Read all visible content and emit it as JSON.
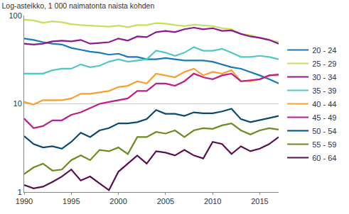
{
  "chart_data": {
    "type": "line",
    "title": "Log-asteikko, 1 000 naimatonta naista kohden",
    "x": [
      1990,
      1991,
      1992,
      1993,
      1994,
      1995,
      1996,
      1997,
      1998,
      1999,
      2000,
      2001,
      2002,
      2003,
      2004,
      2005,
      2006,
      2007,
      2008,
      2009,
      2010,
      2011,
      2012,
      2013,
      2014,
      2015,
      2016,
      2017
    ],
    "series": [
      {
        "name": "20 - 24",
        "color": "#1a7bb8",
        "values": [
          55,
          53,
          50,
          48,
          47,
          43,
          41,
          39,
          38,
          36,
          37,
          34,
          34,
          32,
          32,
          33,
          32,
          31,
          31,
          31,
          30,
          28,
          26,
          25,
          23,
          21,
          19,
          17
        ]
      },
      {
        "name": "25 - 29",
        "color": "#c5e15c",
        "values": [
          90,
          88,
          83,
          86,
          84,
          80,
          78,
          77,
          75,
          75,
          77,
          74,
          78,
          78,
          82,
          81,
          78,
          76,
          79,
          78,
          76,
          72,
          70,
          62,
          60,
          56,
          53,
          50
        ]
      },
      {
        "name": "30 - 34",
        "color": "#8c1a8c",
        "values": [
          48,
          47,
          48,
          51,
          52,
          51,
          53,
          48,
          49,
          50,
          55,
          52,
          58,
          57,
          65,
          67,
          65,
          70,
          73,
          70,
          72,
          67,
          68,
          62,
          58,
          56,
          53,
          48
        ]
      },
      {
        "name": "35 - 39",
        "color": "#4fc9c4",
        "values": [
          22,
          22,
          22,
          24,
          25,
          25,
          28,
          26,
          27,
          30,
          32,
          30,
          31,
          32,
          40,
          38,
          35,
          38,
          44,
          40,
          40,
          42,
          38,
          34,
          34,
          35,
          34,
          32
        ]
      },
      {
        "name": "40 - 44",
        "color": "#f7a030",
        "values": [
          10.5,
          9.8,
          11,
          11,
          11,
          11.5,
          13,
          13,
          13.5,
          14,
          15.5,
          16,
          18,
          17,
          22,
          21,
          20,
          23,
          25,
          21,
          23,
          22,
          24,
          18,
          18,
          19,
          21,
          21
        ]
      },
      {
        "name": "45 - 49",
        "color": "#bf1d8a",
        "values": [
          6.8,
          5.3,
          5.6,
          6.5,
          6.5,
          7.5,
          8,
          9,
          10,
          10.5,
          11,
          11.5,
          14,
          14,
          17,
          17,
          16,
          18,
          22,
          20,
          19,
          21,
          22,
          18,
          18.5,
          19,
          21,
          21.5
        ]
      },
      {
        "name": "50 - 54",
        "color": "#0a4a6e",
        "values": [
          4.3,
          3.5,
          3.2,
          3.3,
          3.1,
          3.7,
          4.7,
          4.2,
          5,
          5.3,
          6,
          6,
          6.2,
          6.7,
          8.5,
          7.7,
          7.7,
          7.3,
          8,
          7.8,
          7.8,
          8.2,
          8.8,
          6.7,
          6.2,
          6.5,
          6.9,
          7.3
        ]
      },
      {
        "name": "55 - 59",
        "color": "#6e8b22",
        "values": [
          1.6,
          1.9,
          2.1,
          1.75,
          1.8,
          2.3,
          2.6,
          2.3,
          3,
          2.9,
          3.2,
          2.7,
          4.2,
          4.2,
          4.8,
          4.6,
          5,
          4.2,
          5,
          5.3,
          5.2,
          5.7,
          6,
          5,
          4.5,
          5,
          5.3,
          5.1
        ]
      },
      {
        "name": "60 - 64",
        "color": "#5a1050",
        "values": [
          1.2,
          1.1,
          1.15,
          1.3,
          1.5,
          1.8,
          1.35,
          1.5,
          1.25,
          1.05,
          1.7,
          2.1,
          2.6,
          2.1,
          2.9,
          2.8,
          2.6,
          3,
          2.6,
          2.4,
          3.7,
          3.5,
          2.7,
          3.3,
          2.9,
          3.1,
          3.5,
          4.2
        ]
      }
    ],
    "xlim": [
      1990,
      2017
    ],
    "xticks": [
      1990,
      1995,
      2000,
      2005,
      2010,
      2015
    ],
    "ylim": [
      1,
      100
    ],
    "yticks": [
      1,
      10,
      100
    ],
    "log": "y",
    "grid": true,
    "legend": "right"
  }
}
